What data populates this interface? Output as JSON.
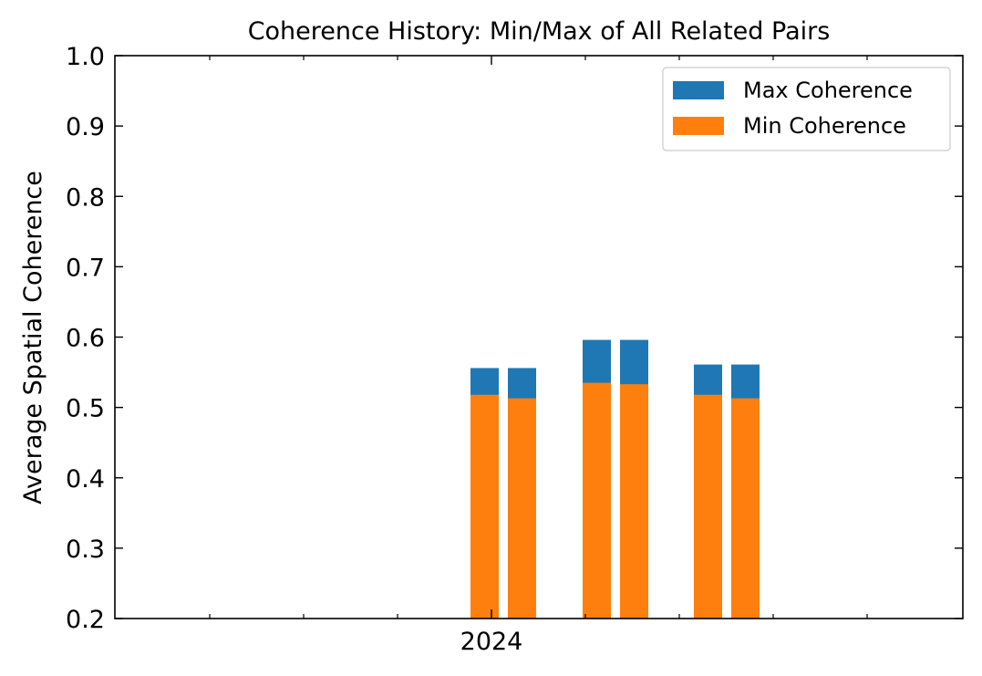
{
  "chart_data": {
    "type": "bar",
    "title": "Coherence History: Min/Max of All Related Pairs",
    "xlabel": "",
    "ylabel": "Average Spatial Coherence",
    "ylim": [
      0.2,
      1.0
    ],
    "yticks": [
      "0.2",
      "0.3",
      "0.4",
      "0.5",
      "0.6",
      "0.7",
      "0.8",
      "0.9",
      "1.0"
    ],
    "x_tick_labels": [
      "2024"
    ],
    "grid": false,
    "legend_position": "top-right",
    "series": [
      {
        "name": "Max Coherence",
        "color": "#1f77b4",
        "values": [
          0.556,
          0.556,
          0.596,
          0.596,
          0.561,
          0.561
        ]
      },
      {
        "name": "Min Coherence",
        "color": "#ff7f0e",
        "values": [
          0.518,
          0.513,
          0.535,
          0.533,
          0.518,
          0.513
        ]
      }
    ]
  }
}
